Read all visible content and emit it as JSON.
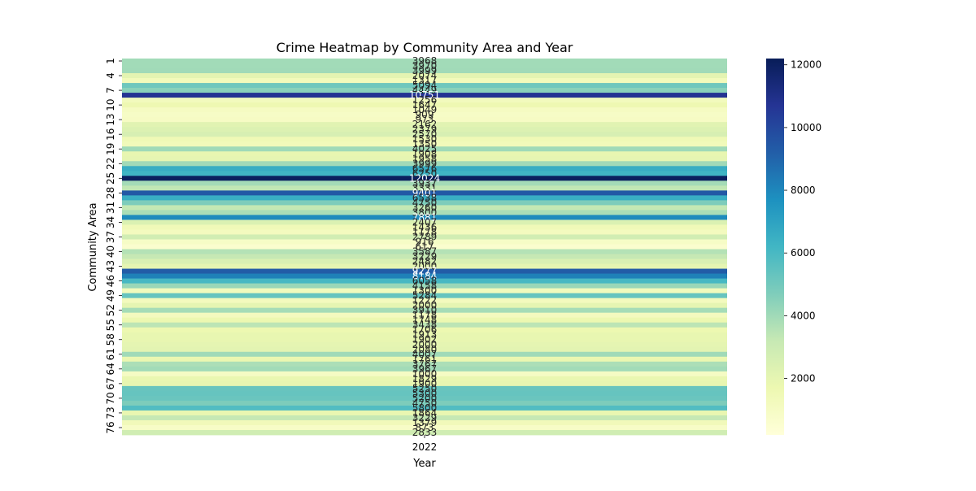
{
  "chart_data": {
    "type": "heatmap",
    "title": "Crime Heatmap by Community Area and Year",
    "xlabel": "Year",
    "ylabel": "Community Area",
    "x_categories": [
      "2022"
    ],
    "y_categories": [
      "1",
      "2",
      "3",
      "4",
      "5",
      "6",
      "7",
      "8",
      "9",
      "10",
      "11",
      "12",
      "13",
      "14",
      "15",
      "16",
      "17",
      "18",
      "19",
      "20",
      "21",
      "22",
      "23",
      "24",
      "25",
      "26",
      "27",
      "28",
      "29",
      "30",
      "31",
      "32",
      "33",
      "34",
      "35",
      "36",
      "37",
      "38",
      "39",
      "40",
      "41",
      "42",
      "43",
      "44",
      "45",
      "46",
      "47",
      "48",
      "49",
      "50",
      "51",
      "52",
      "53",
      "54",
      "55",
      "56",
      "57",
      "58",
      "59",
      "60",
      "61",
      "62",
      "63",
      "64",
      "65",
      "66",
      "67",
      "68",
      "69",
      "70",
      "71",
      "72",
      "73",
      "74",
      "75",
      "76",
      "77"
    ],
    "y_tick_labels": [
      "1",
      "4",
      "7",
      "10",
      "13",
      "16",
      "19",
      "22",
      "25",
      "28",
      "31",
      "34",
      "37",
      "40",
      "43",
      "46",
      "49",
      "52",
      "55",
      "58",
      "61",
      "64",
      "67",
      "70",
      "73",
      "76"
    ],
    "values": [
      3968,
      3970,
      3999,
      2074,
      1317,
      5094,
      4449,
      10751,
      1256,
      1647,
      1049,
      909,
      973,
      2162,
      2379,
      2570,
      1530,
      1350,
      4025,
      1908,
      1958,
      3999,
      6576,
      6250,
      12024,
      3937,
      3331,
      9401,
      6538,
      4750,
      3260,
      3800,
      7881,
      2407,
      1436,
      1178,
      2789,
      916,
      617,
      3587,
      3229,
      2482,
      2000,
      9277,
      8184,
      6058,
      4158,
      1300,
      5284,
      1222,
      2000,
      3910,
      1178,
      1748,
      3438,
      1706,
      1913,
      1902,
      2000,
      2080,
      4007,
      1761,
      3767,
      3967,
      1000,
      1829,
      1900,
      5250,
      5300,
      5200,
      4750,
      5800,
      1864,
      3229,
      1379,
      873,
      2833
    ],
    "value_labels": [
      "3968",
      "3970",
      "3999",
      "2074",
      "1317",
      "5094",
      "4449",
      "10751",
      "1256",
      "1647",
      "1049",
      "909",
      "973",
      "2162",
      "2379",
      "2570",
      "1530",
      "1350",
      "4025",
      "1908",
      "1958",
      "3999",
      "6576",
      "6250",
      "12024",
      "3937",
      "3331",
      "9401",
      "6538",
      "4750",
      "3260",
      "3800",
      "7881",
      "2407",
      "1436",
      "1178",
      "2789",
      "916",
      "617",
      "3587",
      "3229",
      "2482",
      "2000",
      "9277",
      "8184",
      "6058",
      "4158",
      "1300",
      "5284",
      "1222",
      "2000",
      "3910",
      "1178",
      "1748",
      "3438",
      "1706",
      "1913",
      "1902",
      "2000",
      "2080",
      "4007",
      "1761",
      "3767",
      "3967",
      "1000",
      "1829",
      "1900",
      "5250",
      "5300",
      "5200",
      "4750",
      "5800",
      "1864",
      "3229",
      "1379",
      "873",
      "2833"
    ],
    "colorbar": {
      "colormap": "YlGnBu",
      "vmin": 200,
      "vmax": 12200,
      "ticks": [
        2000,
        4000,
        6000,
        8000,
        10000,
        12000
      ],
      "tick_labels": [
        "2000",
        "4000",
        "6000",
        "8000",
        "10000",
        "12000"
      ]
    },
    "colors": [
      "#ffffd9",
      "#edf8b1",
      "#c7e9b4",
      "#7fcdbb",
      "#41b6c4",
      "#1d91c0",
      "#225ea8",
      "#253494",
      "#081d58"
    ]
  }
}
